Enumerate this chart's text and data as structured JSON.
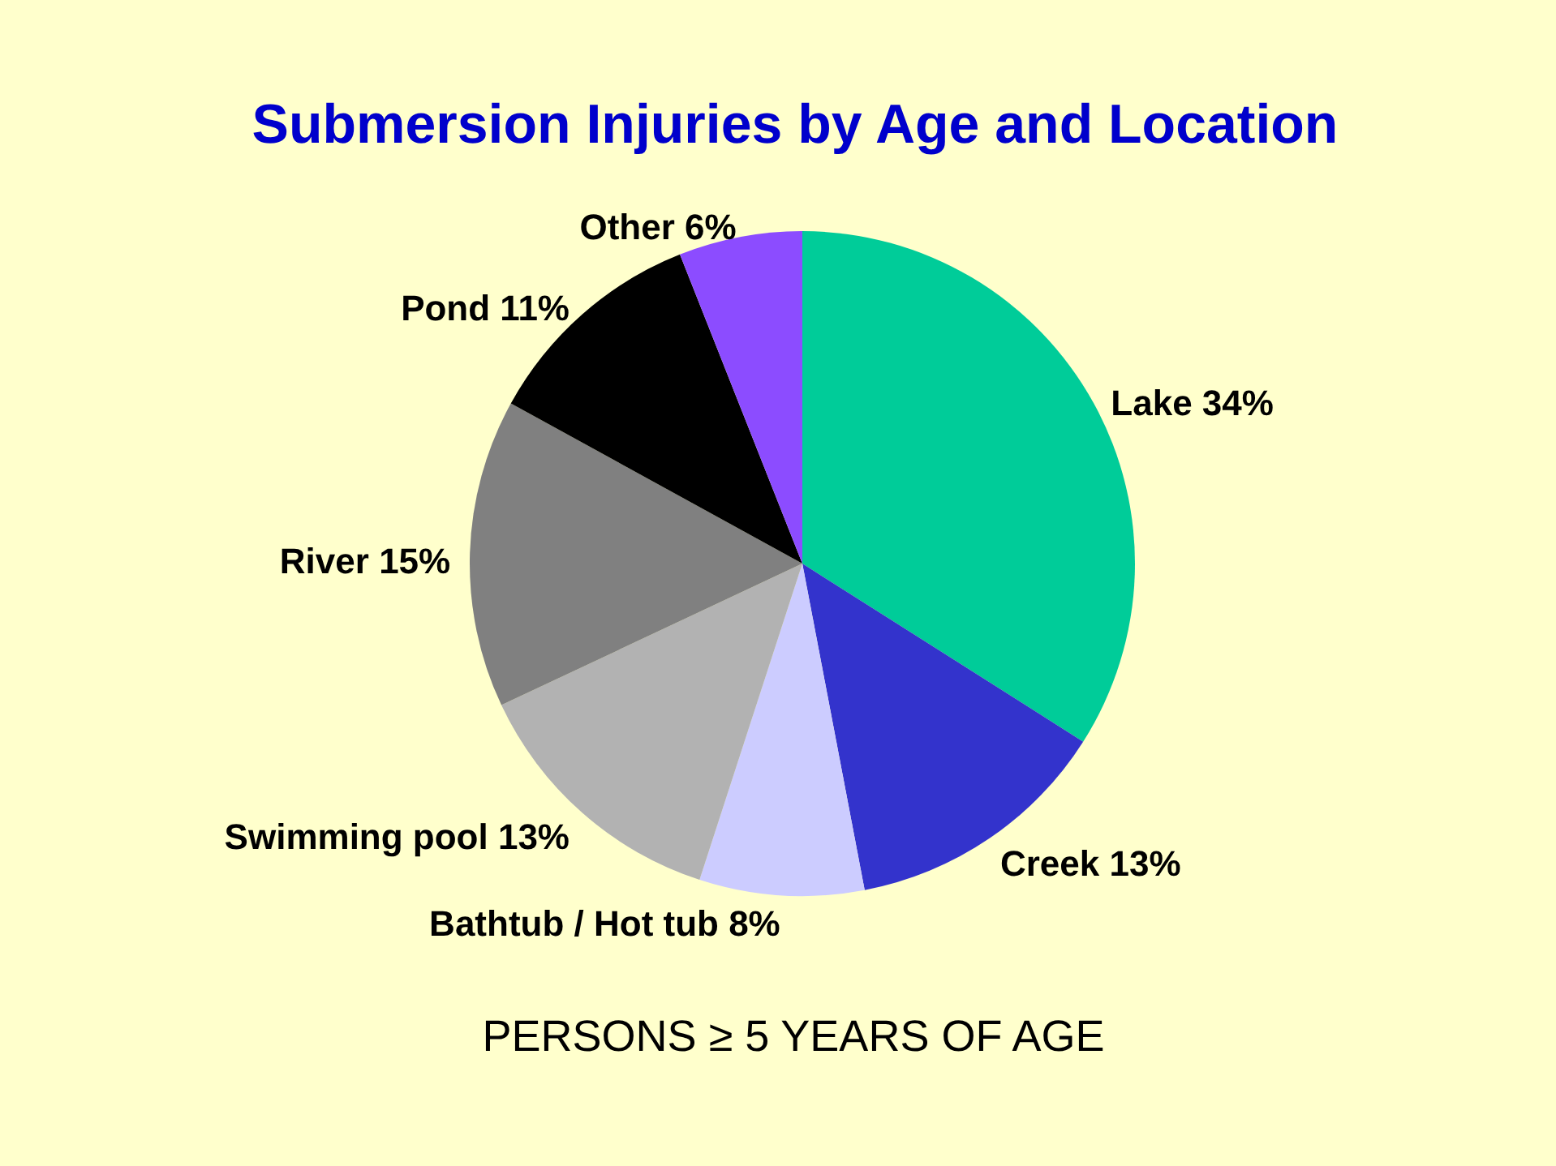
{
  "chart_data": {
    "type": "pie",
    "title": "Submersion Injuries by Age and Location",
    "categories": [
      "Lake",
      "Creek",
      "Bathtub / Hot tub",
      "Swimming pool",
      "River",
      "Pond",
      "Other"
    ],
    "values": [
      34,
      13,
      8,
      13,
      15,
      11,
      6
    ],
    "value_labels": [
      "34%",
      "13%",
      "8%",
      "13%",
      "15%",
      "11%",
      "6%"
    ],
    "colors": [
      "#00cc99",
      "#3333cc",
      "#ccccff",
      "#b2b2b2",
      "#808080",
      "#000000",
      "#8c4cff"
    ],
    "annotations": [
      "PERSONS ≥ 5 YEARS OF AGE"
    ]
  }
}
